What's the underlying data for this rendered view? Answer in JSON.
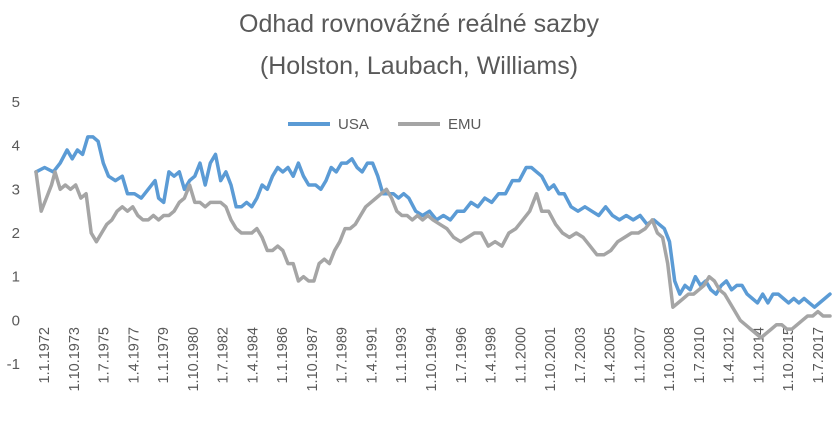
{
  "chart_data": {
    "type": "line",
    "title_lines": [
      "Odhad rovnovážné reálné sazby",
      "(Holston, Laubach, Williams)"
    ],
    "xlabel": "",
    "ylabel": "",
    "ylim": [
      -1,
      5
    ],
    "y_ticks": [
      "5",
      "4",
      "3",
      "2",
      "1",
      "0",
      "-1"
    ],
    "grid": false,
    "legend_position": "top-center",
    "x_tick_labels": [
      "1.1.1972",
      "1.10.1973",
      "1.7.1975",
      "1.4.1977",
      "1.1.1979",
      "1.10.1980",
      "1.7.1982",
      "1.4.1984",
      "1.1.1986",
      "1.10.1987",
      "1.7.1989",
      "1.4.1991",
      "1.1.1993",
      "1.10.1994",
      "1.7.1996",
      "1.4.1998",
      "1.1.2000",
      "1.10.2001",
      "1.7.2003",
      "1.4.2005",
      "1.1.2007",
      "1.10.2008",
      "1.7.2010",
      "1.4.2012",
      "1.1.2014",
      "1.10.2015",
      "1.7.2017"
    ],
    "series": [
      {
        "name": "USA",
        "color": "#5B9BD5",
        "points": [
          [
            1972.0,
            3.4
          ],
          [
            1972.5,
            3.5
          ],
          [
            1973.0,
            3.4
          ],
          [
            1973.4,
            3.6
          ],
          [
            1973.8,
            3.9
          ],
          [
            1974.1,
            3.7
          ],
          [
            1974.4,
            3.9
          ],
          [
            1974.7,
            3.8
          ],
          [
            1975.0,
            4.2
          ],
          [
            1975.3,
            4.2
          ],
          [
            1975.6,
            4.1
          ],
          [
            1975.9,
            3.6
          ],
          [
            1976.2,
            3.3
          ],
          [
            1976.6,
            3.2
          ],
          [
            1977.0,
            3.3
          ],
          [
            1977.3,
            2.9
          ],
          [
            1977.7,
            2.9
          ],
          [
            1978.1,
            2.8
          ],
          [
            1978.5,
            3.0
          ],
          [
            1978.9,
            3.2
          ],
          [
            1979.1,
            2.8
          ],
          [
            1979.4,
            2.7
          ],
          [
            1979.7,
            3.4
          ],
          [
            1980.0,
            3.3
          ],
          [
            1980.3,
            3.4
          ],
          [
            1980.6,
            3.0
          ],
          [
            1980.9,
            3.2
          ],
          [
            1981.2,
            3.3
          ],
          [
            1981.5,
            3.6
          ],
          [
            1981.8,
            3.1
          ],
          [
            1982.1,
            3.6
          ],
          [
            1982.4,
            3.8
          ],
          [
            1982.7,
            3.2
          ],
          [
            1983.0,
            3.4
          ],
          [
            1983.3,
            3.1
          ],
          [
            1983.6,
            2.6
          ],
          [
            1983.9,
            2.6
          ],
          [
            1984.2,
            2.7
          ],
          [
            1984.5,
            2.6
          ],
          [
            1984.8,
            2.8
          ],
          [
            1985.1,
            3.1
          ],
          [
            1985.4,
            3.0
          ],
          [
            1985.7,
            3.3
          ],
          [
            1986.0,
            3.5
          ],
          [
            1986.3,
            3.4
          ],
          [
            1986.6,
            3.5
          ],
          [
            1986.9,
            3.3
          ],
          [
            1987.2,
            3.6
          ],
          [
            1987.5,
            3.3
          ],
          [
            1987.8,
            3.1
          ],
          [
            1988.2,
            3.1
          ],
          [
            1988.5,
            3.0
          ],
          [
            1988.8,
            3.2
          ],
          [
            1989.1,
            3.5
          ],
          [
            1989.4,
            3.4
          ],
          [
            1989.7,
            3.6
          ],
          [
            1990.0,
            3.6
          ],
          [
            1990.3,
            3.7
          ],
          [
            1990.6,
            3.5
          ],
          [
            1990.9,
            3.4
          ],
          [
            1991.2,
            3.6
          ],
          [
            1991.5,
            3.6
          ],
          [
            1991.8,
            3.3
          ],
          [
            1992.1,
            2.9
          ],
          [
            1992.4,
            2.9
          ],
          [
            1992.7,
            2.9
          ],
          [
            1993.0,
            2.8
          ],
          [
            1993.3,
            2.9
          ],
          [
            1993.6,
            2.8
          ],
          [
            1994.0,
            2.5
          ],
          [
            1994.4,
            2.4
          ],
          [
            1994.8,
            2.5
          ],
          [
            1995.2,
            2.3
          ],
          [
            1995.6,
            2.4
          ],
          [
            1996.0,
            2.3
          ],
          [
            1996.4,
            2.5
          ],
          [
            1996.8,
            2.5
          ],
          [
            1997.2,
            2.7
          ],
          [
            1997.6,
            2.6
          ],
          [
            1998.0,
            2.8
          ],
          [
            1998.4,
            2.7
          ],
          [
            1998.8,
            2.9
          ],
          [
            1999.2,
            2.9
          ],
          [
            1999.6,
            3.2
          ],
          [
            2000.0,
            3.2
          ],
          [
            2000.4,
            3.5
          ],
          [
            2000.7,
            3.5
          ],
          [
            2001.0,
            3.4
          ],
          [
            2001.3,
            3.3
          ],
          [
            2001.7,
            3.0
          ],
          [
            2002.0,
            3.1
          ],
          [
            2002.3,
            2.9
          ],
          [
            2002.6,
            2.9
          ],
          [
            2003.0,
            2.6
          ],
          [
            2003.4,
            2.5
          ],
          [
            2003.8,
            2.6
          ],
          [
            2004.2,
            2.5
          ],
          [
            2004.6,
            2.4
          ],
          [
            2005.0,
            2.6
          ],
          [
            2005.4,
            2.4
          ],
          [
            2005.8,
            2.3
          ],
          [
            2006.2,
            2.4
          ],
          [
            2006.6,
            2.3
          ],
          [
            2007.0,
            2.4
          ],
          [
            2007.4,
            2.2
          ],
          [
            2007.8,
            2.3
          ],
          [
            2008.1,
            2.2
          ],
          [
            2008.4,
            2.1
          ],
          [
            2008.7,
            1.8
          ],
          [
            2009.0,
            0.9
          ],
          [
            2009.3,
            0.6
          ],
          [
            2009.6,
            0.8
          ],
          [
            2009.9,
            0.7
          ],
          [
            2010.2,
            1.0
          ],
          [
            2010.5,
            0.8
          ],
          [
            2010.8,
            0.9
          ],
          [
            2011.1,
            0.7
          ],
          [
            2011.4,
            0.6
          ],
          [
            2011.7,
            0.8
          ],
          [
            2012.0,
            0.9
          ],
          [
            2012.3,
            0.7
          ],
          [
            2012.6,
            0.8
          ],
          [
            2012.9,
            0.8
          ],
          [
            2013.2,
            0.6
          ],
          [
            2013.5,
            0.5
          ],
          [
            2013.8,
            0.4
          ],
          [
            2014.1,
            0.6
          ],
          [
            2014.4,
            0.4
          ],
          [
            2014.7,
            0.6
          ],
          [
            2015.0,
            0.6
          ],
          [
            2015.3,
            0.5
          ],
          [
            2015.6,
            0.4
          ],
          [
            2015.9,
            0.5
          ],
          [
            2016.2,
            0.4
          ],
          [
            2016.5,
            0.5
          ],
          [
            2016.8,
            0.4
          ],
          [
            2017.1,
            0.3
          ],
          [
            2017.4,
            0.4
          ],
          [
            2017.7,
            0.5
          ],
          [
            2018.0,
            0.6
          ]
        ]
      },
      {
        "name": "EMU",
        "color": "#A5A5A5",
        "points": [
          [
            1972.0,
            3.4
          ],
          [
            1972.3,
            2.5
          ],
          [
            1972.6,
            2.8
          ],
          [
            1972.9,
            3.1
          ],
          [
            1973.1,
            3.4
          ],
          [
            1973.4,
            3.0
          ],
          [
            1973.7,
            3.1
          ],
          [
            1974.0,
            3.0
          ],
          [
            1974.3,
            3.1
          ],
          [
            1974.6,
            2.8
          ],
          [
            1974.9,
            2.9
          ],
          [
            1975.2,
            2.0
          ],
          [
            1975.5,
            1.8
          ],
          [
            1975.8,
            2.0
          ],
          [
            1976.1,
            2.2
          ],
          [
            1976.4,
            2.3
          ],
          [
            1976.7,
            2.5
          ],
          [
            1977.0,
            2.6
          ],
          [
            1977.3,
            2.5
          ],
          [
            1977.6,
            2.6
          ],
          [
            1977.9,
            2.4
          ],
          [
            1978.2,
            2.3
          ],
          [
            1978.5,
            2.3
          ],
          [
            1978.8,
            2.4
          ],
          [
            1979.1,
            2.3
          ],
          [
            1979.4,
            2.4
          ],
          [
            1979.7,
            2.4
          ],
          [
            1980.0,
            2.5
          ],
          [
            1980.3,
            2.7
          ],
          [
            1980.6,
            2.8
          ],
          [
            1980.9,
            3.1
          ],
          [
            1981.2,
            2.7
          ],
          [
            1981.5,
            2.7
          ],
          [
            1981.8,
            2.6
          ],
          [
            1982.1,
            2.7
          ],
          [
            1982.4,
            2.7
          ],
          [
            1982.7,
            2.7
          ],
          [
            1983.0,
            2.6
          ],
          [
            1983.3,
            2.3
          ],
          [
            1983.6,
            2.1
          ],
          [
            1983.9,
            2.0
          ],
          [
            1984.2,
            2.0
          ],
          [
            1984.5,
            2.0
          ],
          [
            1984.8,
            2.1
          ],
          [
            1985.1,
            1.9
          ],
          [
            1985.4,
            1.6
          ],
          [
            1985.7,
            1.6
          ],
          [
            1986.0,
            1.7
          ],
          [
            1986.3,
            1.6
          ],
          [
            1986.6,
            1.3
          ],
          [
            1986.9,
            1.3
          ],
          [
            1987.2,
            0.9
          ],
          [
            1987.5,
            1.0
          ],
          [
            1987.8,
            0.9
          ],
          [
            1988.1,
            0.9
          ],
          [
            1988.4,
            1.3
          ],
          [
            1988.7,
            1.4
          ],
          [
            1989.0,
            1.3
          ],
          [
            1989.3,
            1.6
          ],
          [
            1989.6,
            1.8
          ],
          [
            1989.9,
            2.1
          ],
          [
            1990.2,
            2.1
          ],
          [
            1990.5,
            2.2
          ],
          [
            1990.8,
            2.4
          ],
          [
            1991.1,
            2.6
          ],
          [
            1991.4,
            2.7
          ],
          [
            1991.7,
            2.8
          ],
          [
            1992.0,
            2.9
          ],
          [
            1992.3,
            3.0
          ],
          [
            1992.6,
            2.8
          ],
          [
            1992.9,
            2.5
          ],
          [
            1993.2,
            2.4
          ],
          [
            1993.5,
            2.4
          ],
          [
            1993.8,
            2.3
          ],
          [
            1994.1,
            2.4
          ],
          [
            1994.4,
            2.3
          ],
          [
            1994.7,
            2.4
          ],
          [
            1995.0,
            2.3
          ],
          [
            1995.4,
            2.2
          ],
          [
            1995.8,
            2.1
          ],
          [
            1996.2,
            1.9
          ],
          [
            1996.6,
            1.8
          ],
          [
            1997.0,
            1.9
          ],
          [
            1997.4,
            2.0
          ],
          [
            1997.8,
            2.0
          ],
          [
            1998.2,
            1.7
          ],
          [
            1998.6,
            1.8
          ],
          [
            1999.0,
            1.7
          ],
          [
            1999.4,
            2.0
          ],
          [
            1999.8,
            2.1
          ],
          [
            2000.2,
            2.3
          ],
          [
            2000.6,
            2.5
          ],
          [
            2001.0,
            2.9
          ],
          [
            2001.3,
            2.5
          ],
          [
            2001.7,
            2.5
          ],
          [
            2002.1,
            2.2
          ],
          [
            2002.5,
            2.0
          ],
          [
            2002.9,
            1.9
          ],
          [
            2003.3,
            2.0
          ],
          [
            2003.7,
            1.9
          ],
          [
            2004.1,
            1.7
          ],
          [
            2004.5,
            1.5
          ],
          [
            2004.9,
            1.5
          ],
          [
            2005.3,
            1.6
          ],
          [
            2005.7,
            1.8
          ],
          [
            2006.1,
            1.9
          ],
          [
            2006.5,
            2.0
          ],
          [
            2006.9,
            2.0
          ],
          [
            2007.3,
            2.1
          ],
          [
            2007.7,
            2.3
          ],
          [
            2008.0,
            2.0
          ],
          [
            2008.3,
            1.9
          ],
          [
            2008.6,
            1.3
          ],
          [
            2008.9,
            0.3
          ],
          [
            2009.2,
            0.4
          ],
          [
            2009.5,
            0.5
          ],
          [
            2009.8,
            0.6
          ],
          [
            2010.1,
            0.6
          ],
          [
            2010.4,
            0.7
          ],
          [
            2010.7,
            0.8
          ],
          [
            2011.0,
            1.0
          ],
          [
            2011.3,
            0.9
          ],
          [
            2011.6,
            0.7
          ],
          [
            2011.9,
            0.6
          ],
          [
            2012.2,
            0.4
          ],
          [
            2012.5,
            0.2
          ],
          [
            2012.8,
            0.0
          ],
          [
            2013.1,
            -0.1
          ],
          [
            2013.4,
            -0.2
          ],
          [
            2013.7,
            -0.3
          ],
          [
            2014.0,
            -0.4
          ],
          [
            2014.3,
            -0.3
          ],
          [
            2014.6,
            -0.2
          ],
          [
            2014.9,
            -0.1
          ],
          [
            2015.2,
            -0.1
          ],
          [
            2015.5,
            -0.2
          ],
          [
            2015.8,
            -0.2
          ],
          [
            2016.1,
            -0.1
          ],
          [
            2016.4,
            0.0
          ],
          [
            2016.7,
            0.1
          ],
          [
            2017.0,
            0.1
          ],
          [
            2017.3,
            0.2
          ],
          [
            2017.6,
            0.1
          ],
          [
            2018.0,
            0.1
          ]
        ]
      }
    ]
  }
}
